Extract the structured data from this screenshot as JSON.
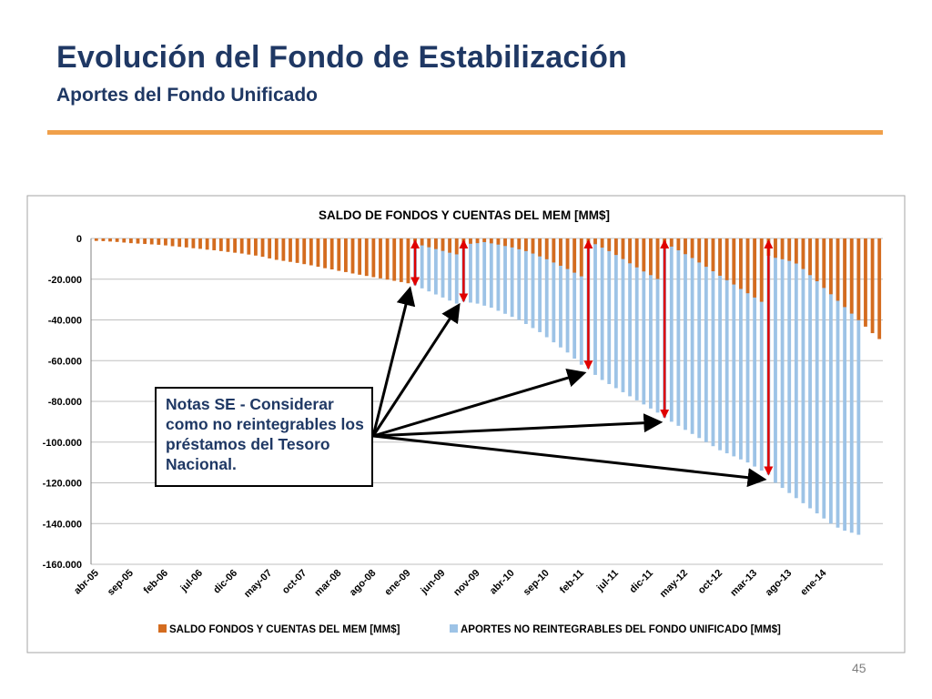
{
  "slide": {
    "title": "Evolución del Fondo de Estabilización",
    "subtitle": "Aportes del Fondo Unificado",
    "page_number": "45"
  },
  "note": {
    "text": "Notas SE - Considerar como no reintegrables los préstamos del Tesoro Nacional."
  },
  "colors": {
    "saldo": "#d46c1f",
    "aportes": "#9dc3e6",
    "arrow_red": "#e00000",
    "arrow_black": "#000000",
    "title": "#1f3864",
    "accent_rule": "#f0a04b"
  },
  "chart_data": {
    "type": "bar",
    "title": "SALDO DE FONDOS Y CUENTAS DEL MEM  [MM$]",
    "xlabel": "",
    "ylabel": "",
    "ylim": [
      -160000,
      0
    ],
    "yticks": [
      0,
      -20000,
      -40000,
      -60000,
      -80000,
      -100000,
      -120000,
      -140000,
      -160000
    ],
    "ytick_labels": [
      "0",
      "-20.000",
      "-40.000",
      "-60.000",
      "-80.000",
      "-100.000",
      "-120.000",
      "-140.000",
      "-160.000"
    ],
    "grid": true,
    "legend_position": "bottom",
    "tick_labels": [
      "abr-05",
      "sep-05",
      "feb-06",
      "jul-06",
      "dic-06",
      "may-07",
      "oct-07",
      "mar-08",
      "ago-08",
      "ene-09",
      "jun-09",
      "nov-09",
      "abr-10",
      "sep-10",
      "feb-11",
      "jul-11",
      "dic-11",
      "may-12",
      "oct-12",
      "mar-13",
      "ago-13",
      "ene-14"
    ],
    "series": [
      {
        "name": "SALDO FONDOS Y CUENTAS DEL MEM [MM$]",
        "color": "#d46c1f",
        "values": [
          -1200,
          -1300,
          -1500,
          -1700,
          -2000,
          -2300,
          -2500,
          -2700,
          -2900,
          -3100,
          -3400,
          -3800,
          -4100,
          -4400,
          -4800,
          -5100,
          -5500,
          -5800,
          -6200,
          -6600,
          -7000,
          -7400,
          -7900,
          -8400,
          -9000,
          -9800,
          -10500,
          -11000,
          -11500,
          -12000,
          -12600,
          -13200,
          -13900,
          -14600,
          -15200,
          -15900,
          -16500,
          -17200,
          -17800,
          -18400,
          -19000,
          -19600,
          -20200,
          -20800,
          -21400,
          -22000,
          -1500,
          -3400,
          -4300,
          -5200,
          -6100,
          -7000,
          -7800,
          -2800,
          -2600,
          -2300,
          -1800,
          -2400,
          -3000,
          -3700,
          -4400,
          -5300,
          -6200,
          -7400,
          -8800,
          -10200,
          -11800,
          -13400,
          -15000,
          -16800,
          -18600,
          -2200,
          -2800,
          -4500,
          -6200,
          -8100,
          -10100,
          -12200,
          -14200,
          -16200,
          -18000,
          -19900,
          -2300,
          -4000,
          -5800,
          -7700,
          -9600,
          -11800,
          -13900,
          -16100,
          -18300,
          -20500,
          -22600,
          -24800,
          -26900,
          -29000,
          -31100,
          -8500,
          -9500,
          -10200,
          -11000,
          -12300,
          -15000,
          -18000,
          -21000,
          -24300,
          -27400,
          -30600,
          -33700,
          -36900,
          -40100,
          -43300,
          -46500,
          -49400
        ]
      },
      {
        "name": "APORTES NO REINTEGRABLES  DEL FONDO UNIFICADO [MM$]",
        "color": "#9dc3e6",
        "values": [
          0,
          0,
          0,
          0,
          0,
          0,
          0,
          0,
          0,
          0,
          0,
          0,
          0,
          0,
          0,
          0,
          0,
          0,
          0,
          0,
          0,
          0,
          0,
          0,
          0,
          0,
          0,
          0,
          0,
          0,
          0,
          0,
          0,
          0,
          0,
          0,
          0,
          0,
          0,
          0,
          0,
          0,
          0,
          0,
          0,
          0,
          -23000,
          -24500,
          -26000,
          -27500,
          -29000,
          -30500,
          -32000,
          -31000,
          -31500,
          -32000,
          -33000,
          -34000,
          -35500,
          -37000,
          -38500,
          -40000,
          -42000,
          -44000,
          -46000,
          -48500,
          -51000,
          -53500,
          -56000,
          -59000,
          -62000,
          -64000,
          -67000,
          -69500,
          -71500,
          -73500,
          -75500,
          -77500,
          -79500,
          -81500,
          -83500,
          -85500,
          -88000,
          -90000,
          -92000,
          -94000,
          -96000,
          -98000,
          -100000,
          -102000,
          -104000,
          -105500,
          -107000,
          -108500,
          -110000,
          -112000,
          -114000,
          -116000,
          -120000,
          -122500,
          -125000,
          -127500,
          -130000,
          -132500,
          -135000,
          -137500,
          -140000,
          -142000,
          -143500,
          -144500,
          -145500
        ]
      }
    ],
    "annotations": [
      {
        "type": "double-arrow",
        "month_index": 46
      },
      {
        "type": "double-arrow",
        "month_index": 53
      },
      {
        "type": "double-arrow",
        "month_index": 71
      },
      {
        "type": "double-arrow",
        "month_index": 82
      },
      {
        "type": "double-arrow",
        "month_index": 97
      }
    ]
  }
}
